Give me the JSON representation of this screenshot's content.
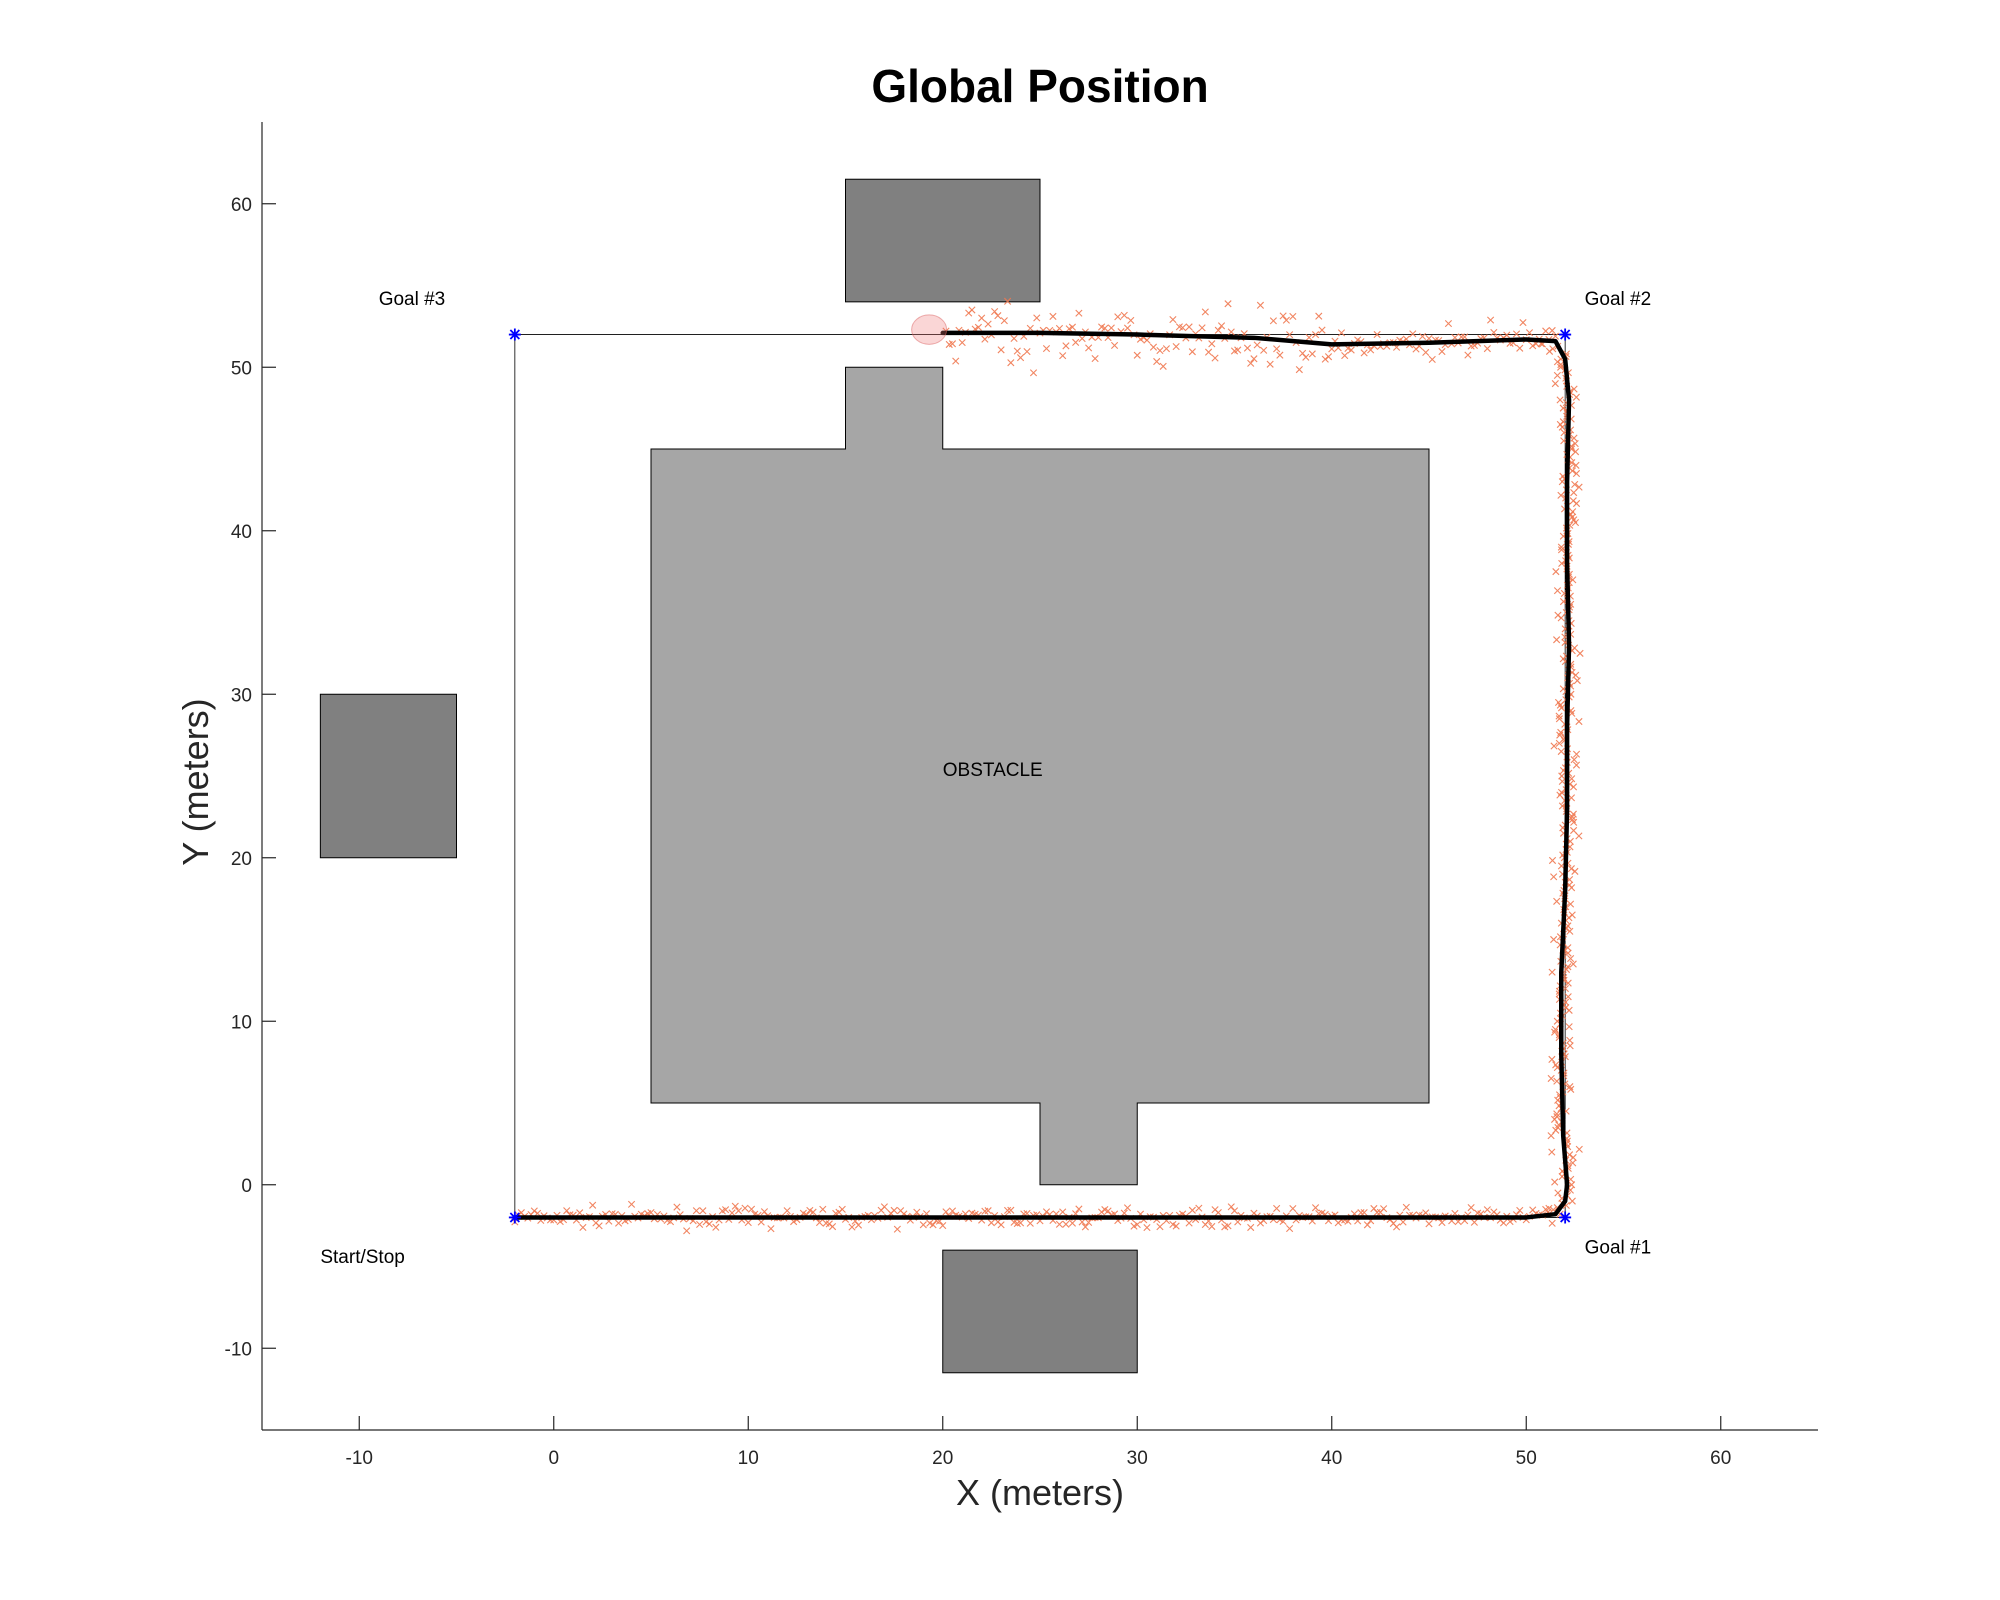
{
  "chart_data": {
    "type": "scatter",
    "title": "Global Position",
    "xlabel": "X (meters)",
    "ylabel": "Y (meters)",
    "xlim": [
      -15,
      65
    ],
    "ylim": [
      -15,
      65
    ],
    "xticks": [
      -10,
      0,
      10,
      20,
      30,
      40,
      50,
      60
    ],
    "yticks": [
      -10,
      0,
      10,
      20,
      30,
      40,
      50,
      60
    ],
    "grid": false,
    "colors": {
      "obstacle": "#a6a6a6",
      "block": "#808080",
      "waypoint": "#0000ff",
      "trajectory": "#000000",
      "measurement": "#f07850",
      "reference": "#000000"
    },
    "obstacle": {
      "label": "OBSTACLE",
      "label_pos": [
        20,
        25
      ],
      "polygon": [
        [
          5,
          5
        ],
        [
          25,
          5
        ],
        [
          25,
          0
        ],
        [
          30,
          0
        ],
        [
          30,
          5
        ],
        [
          45,
          5
        ],
        [
          45,
          45
        ],
        [
          20,
          45
        ],
        [
          20,
          50
        ],
        [
          15,
          50
        ],
        [
          15,
          45
        ],
        [
          5,
          45
        ]
      ]
    },
    "blocks": [
      {
        "x0": 15,
        "x1": 25,
        "y0": 54,
        "y1": 61.5
      },
      {
        "x0": -12,
        "x1": -5,
        "y0": 20,
        "y1": 30
      },
      {
        "x0": 20,
        "x1": 30,
        "y0": -11.5,
        "y1": -4
      }
    ],
    "waypoints": [
      {
        "label": "Start/Stop",
        "x": -2,
        "y": -2,
        "label_pos": [
          -12,
          -4.8
        ]
      },
      {
        "label": "Goal #1",
        "x": 52,
        "y": -2,
        "label_pos": [
          53,
          -4.2
        ]
      },
      {
        "label": "Goal #2",
        "x": 52,
        "y": 52,
        "label_pos": [
          53,
          53.8
        ]
      },
      {
        "label": "Goal #3",
        "x": -2,
        "y": 52,
        "label_pos": [
          -9,
          53.8
        ]
      }
    ],
    "reference_path": [
      [
        -2,
        -2
      ],
      [
        52,
        -2
      ],
      [
        52,
        52
      ],
      [
        -2,
        52
      ],
      [
        -2,
        -2
      ]
    ],
    "trajectory": [
      [
        -2,
        -2
      ],
      [
        5,
        -2
      ],
      [
        15,
        -2
      ],
      [
        25,
        -2
      ],
      [
        35,
        -2
      ],
      [
        45,
        -2
      ],
      [
        50,
        -2
      ],
      [
        51.5,
        -1.8
      ],
      [
        52,
        -1
      ],
      [
        52.1,
        0
      ],
      [
        51.9,
        3
      ],
      [
        51.8,
        8
      ],
      [
        51.8,
        13
      ],
      [
        52,
        18
      ],
      [
        52.1,
        23
      ],
      [
        52.1,
        28
      ],
      [
        52.2,
        33
      ],
      [
        52.1,
        38
      ],
      [
        52.1,
        43
      ],
      [
        52.2,
        48
      ],
      [
        52,
        50.5
      ],
      [
        51.5,
        51.6
      ],
      [
        50,
        51.7
      ],
      [
        45,
        51.5
      ],
      [
        40,
        51.4
      ],
      [
        36,
        51.8
      ],
      [
        30,
        52
      ],
      [
        25,
        52.1
      ],
      [
        22,
        52.1
      ],
      [
        20,
        52.1
      ]
    ],
    "measurements_seed": 7,
    "end_marker": {
      "x": 19.3,
      "y": 52.3,
      "radius": 0.9
    }
  }
}
